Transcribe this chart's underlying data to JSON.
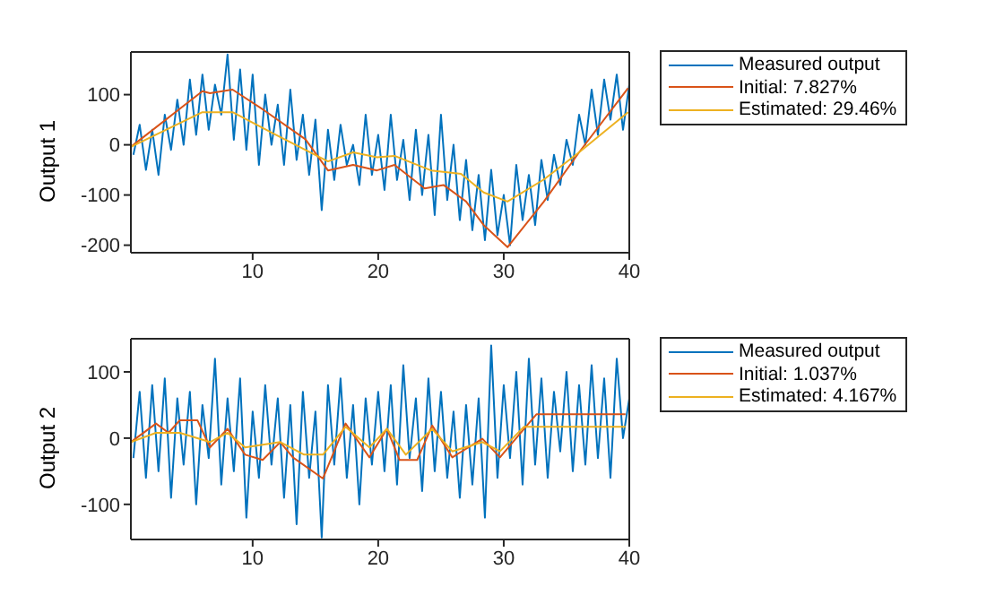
{
  "chart_data": [
    {
      "type": "line",
      "ylabel": "Output 1",
      "xlim": [
        0.3,
        40
      ],
      "xticks": [
        10,
        20,
        30,
        40
      ],
      "ylim": [
        -215,
        185
      ],
      "yticks": [
        -200,
        -100,
        0,
        100
      ],
      "legend": "right",
      "marker": "none",
      "line_style": "solid",
      "series": [
        {
          "name": "Measured output",
          "color": "#0072bd",
          "x": [
            0.5,
            1,
            1.5,
            2,
            2.5,
            3,
            3.5,
            4,
            4.5,
            5,
            5.5,
            6,
            6.5,
            7,
            7.5,
            8,
            8.5,
            9,
            9.5,
            10,
            10.5,
            11,
            11.5,
            12,
            12.5,
            13,
            13.5,
            14,
            14.5,
            15,
            15.5,
            16,
            16.5,
            17,
            17.5,
            18,
            18.5,
            19,
            19.5,
            20,
            20.5,
            21,
            21.5,
            22,
            22.5,
            23,
            23.5,
            24,
            24.5,
            25,
            25.5,
            26,
            26.5,
            27,
            27.5,
            28,
            28.5,
            29,
            29.5,
            30,
            30.5,
            31,
            31.5,
            32,
            32.5,
            33,
            33.5,
            34,
            34.5,
            35,
            35.5,
            36,
            36.5,
            37,
            37.5,
            38,
            38.5,
            39,
            39.5,
            40
          ],
          "values": [
            -20,
            40,
            -50,
            30,
            -60,
            60,
            -10,
            90,
            0,
            130,
            20,
            140,
            30,
            120,
            60,
            180,
            10,
            150,
            -10,
            140,
            -40,
            100,
            0,
            80,
            -40,
            110,
            -30,
            60,
            -60,
            50,
            -130,
            30,
            -70,
            40,
            -40,
            0,
            -80,
            60,
            -60,
            20,
            -90,
            60,
            -70,
            10,
            -110,
            30,
            -100,
            20,
            -140,
            60,
            -110,
            0,
            -150,
            -30,
            -170,
            -60,
            -190,
            -50,
            -180,
            -100,
            -200,
            -40,
            -150,
            -60,
            -160,
            -30,
            -110,
            -20,
            -80,
            10,
            -40,
            60,
            0,
            110,
            20,
            130,
            50,
            140,
            30,
            120
          ]
        },
        {
          "name": "Initial: 7.827%",
          "color": "#d95319",
          "x": [
            0.3,
            6,
            6.6,
            8.4,
            10.9,
            14.2,
            16,
            18,
            19.9,
            21.3,
            23.7,
            25.2,
            27,
            28.4,
            30.3,
            33.2,
            36,
            39.9
          ],
          "values": [
            -4,
            107,
            103,
            110,
            69,
            11,
            -51,
            -40,
            -51,
            -40,
            -87,
            -80,
            -113,
            -160,
            -204,
            -113,
            -15,
            113
          ]
        },
        {
          "name": "Estimated: 29.46%",
          "color": "#edb120",
          "x": [
            0.3,
            6,
            8.4,
            11.7,
            16,
            18,
            19.9,
            21.3,
            24.2,
            26.6,
            28.4,
            30.3,
            33.2,
            36,
            39.9
          ],
          "values": [
            -4,
            65,
            65,
            22,
            -33,
            -15,
            -25,
            -22,
            -51,
            -58,
            -95,
            -113,
            -69,
            -15,
            65
          ]
        }
      ]
    },
    {
      "type": "line",
      "ylabel": "Output 2",
      "xlim": [
        0.3,
        40
      ],
      "xticks": [
        10,
        20,
        30,
        40
      ],
      "ylim": [
        -153,
        150
      ],
      "yticks": [
        -100,
        0,
        100
      ],
      "legend": "right",
      "marker": "none",
      "line_style": "solid",
      "series": [
        {
          "name": "Measured output",
          "color": "#0072bd",
          "x": [
            0.5,
            1,
            1.5,
            2,
            2.5,
            3,
            3.5,
            4,
            4.5,
            5,
            5.5,
            6,
            6.5,
            7,
            7.5,
            8,
            8.5,
            9,
            9.5,
            10,
            10.5,
            11,
            11.5,
            12,
            12.5,
            13,
            13.5,
            14,
            14.5,
            15,
            15.5,
            16,
            16.5,
            17,
            17.5,
            18,
            18.5,
            19,
            19.5,
            20,
            20.5,
            21,
            21.5,
            22,
            22.5,
            23,
            23.5,
            24,
            24.5,
            25,
            25.5,
            26,
            26.5,
            27,
            27.5,
            28,
            28.5,
            29,
            29.5,
            30,
            30.5,
            31,
            31.5,
            32,
            32.5,
            33,
            33.5,
            34,
            34.5,
            35,
            35.5,
            36,
            36.5,
            37,
            37.5,
            38,
            38.5,
            39,
            39.5,
            40
          ],
          "values": [
            -30,
            70,
            -60,
            80,
            -50,
            90,
            -90,
            60,
            -40,
            70,
            -100,
            50,
            -30,
            120,
            -70,
            60,
            -50,
            90,
            -120,
            40,
            -60,
            80,
            -40,
            60,
            -90,
            50,
            -130,
            70,
            -60,
            40,
            -150,
            80,
            -40,
            90,
            -60,
            50,
            -100,
            60,
            -40,
            70,
            -50,
            80,
            -70,
            110,
            -30,
            60,
            -80,
            90,
            -50,
            70,
            -60,
            40,
            -90,
            50,
            -70,
            60,
            -120,
            140,
            -60,
            80,
            -30,
            100,
            -70,
            120,
            -40,
            90,
            -60,
            70,
            -20,
            100,
            -50,
            80,
            -40,
            110,
            -30,
            90,
            -60,
            120,
            0,
            60
          ]
        },
        {
          "name": "Initial: 1.037%",
          "color": "#d95319",
          "x": [
            0.3,
            2.3,
            3.3,
            4.2,
            5.6,
            6.6,
            8,
            9.4,
            10.8,
            12.2,
            13.2,
            15.6,
            17.4,
            19.3,
            20.7,
            21.7,
            23.1,
            24.3,
            25.9,
            28.3,
            29.7,
            32.6,
            39.7
          ],
          "values": [
            -6,
            22,
            8,
            27,
            27,
            -14,
            14,
            -25,
            -33,
            -6,
            -29,
            -61,
            22,
            -29,
            14,
            -33,
            -33,
            19,
            -29,
            -1,
            -29,
            36,
            36
          ]
        },
        {
          "name": "Estimated: 4.167%",
          "color": "#edb120",
          "x": [
            0.3,
            2.3,
            4.2,
            6.6,
            8,
            9.4,
            12.2,
            14.1,
            15.6,
            17.4,
            19.3,
            20.7,
            22.2,
            24.3,
            25.9,
            28.3,
            29.7,
            31.6,
            39.7
          ],
          "values": [
            -6,
            8,
            8,
            -6,
            8,
            -14,
            -6,
            -25,
            -25,
            17,
            -14,
            14,
            -25,
            14,
            -20,
            -6,
            -20,
            17,
            17
          ]
        }
      ]
    }
  ]
}
